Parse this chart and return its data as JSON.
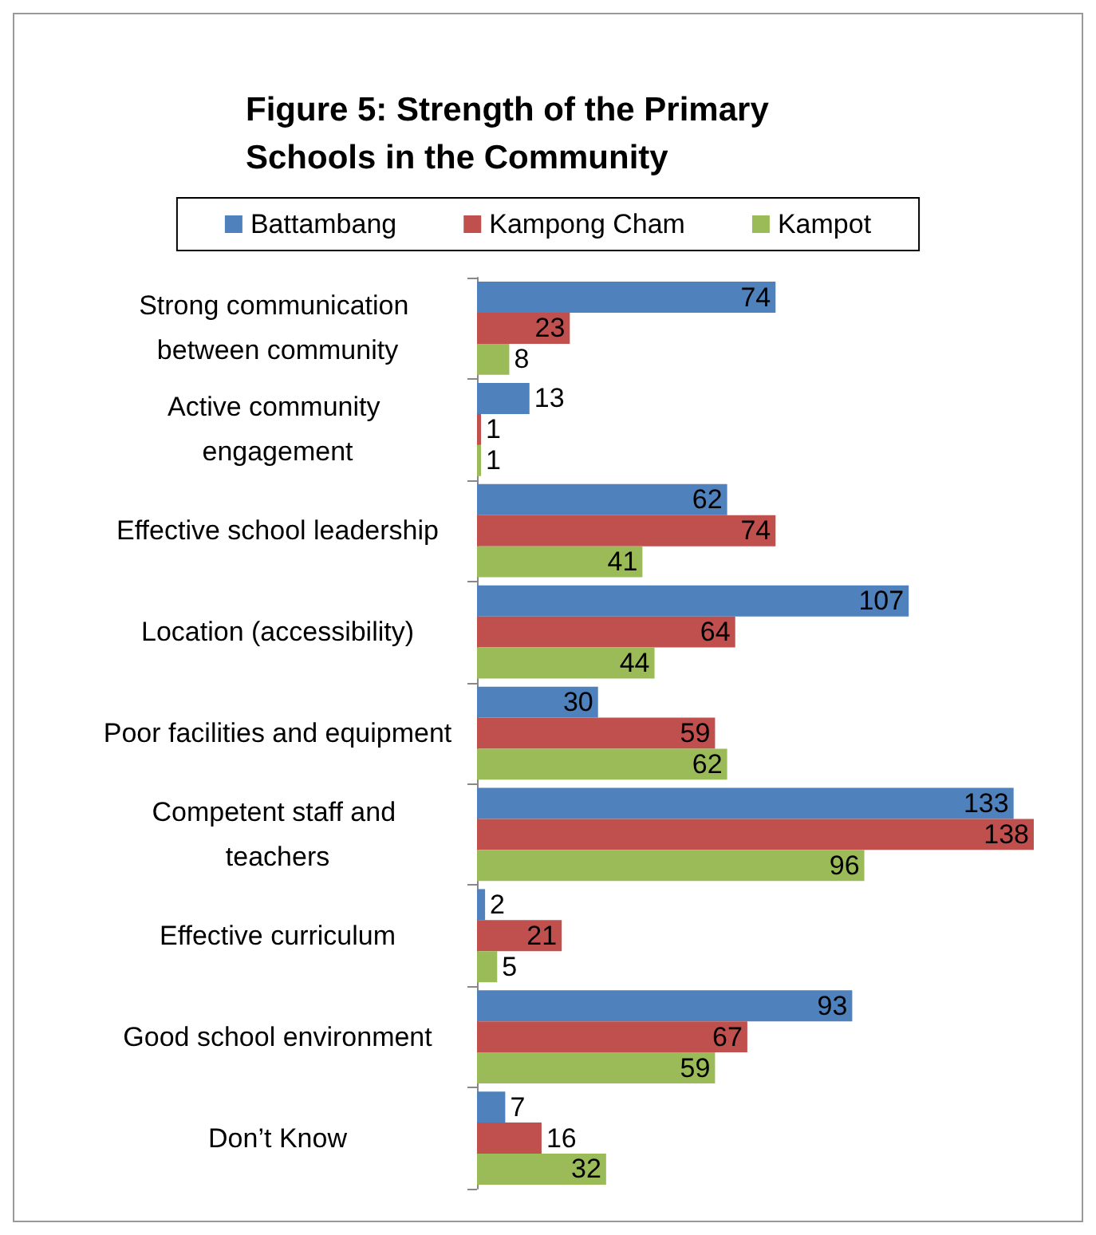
{
  "chart_data": {
    "type": "bar",
    "orientation": "horizontal",
    "title": "Figure 5: Strength of the Primary Schools in the Community",
    "categories": [
      "Strong communication between community",
      "Active community engagement",
      "Effective school leadership",
      "Location (accessibility)",
      "Poor facilities and equipment",
      "Competent staff and teachers",
      "Effective curriculum",
      "Good school environment",
      "Don’t Know"
    ],
    "series": [
      {
        "name": "Battambang",
        "color": "#4f81bd",
        "values": [
          74,
          13,
          62,
          107,
          30,
          133,
          2,
          93,
          7
        ]
      },
      {
        "name": "Kampong Cham",
        "color": "#c0504d",
        "values": [
          23,
          1,
          74,
          64,
          59,
          138,
          21,
          67,
          16
        ]
      },
      {
        "name": "Kampot",
        "color": "#9bbb59",
        "values": [
          8,
          1,
          41,
          44,
          62,
          96,
          5,
          59,
          32
        ]
      }
    ],
    "data_labels": true,
    "legend": "top",
    "grid": false,
    "tick_labels": "y"
  }
}
